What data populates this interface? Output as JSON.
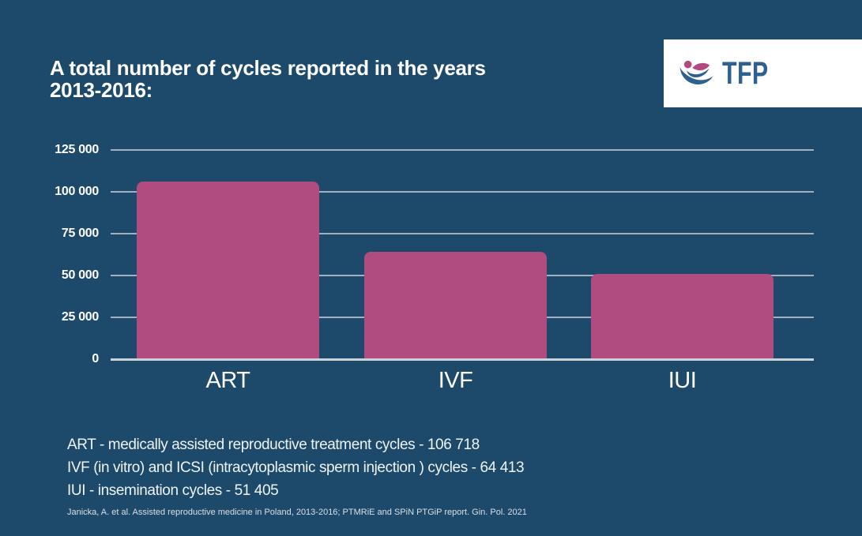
{
  "header": {
    "title_line1": "A total number of cycles reported in the years",
    "title_line2": "2013-2016:"
  },
  "logo": {
    "text": "TFP",
    "icon": "tfp-reclining-person-icon"
  },
  "chart_data": {
    "type": "bar",
    "title": "A total number of cycles reported in the years 2013-2016:",
    "categories": [
      "ART",
      "IVF",
      "IUI"
    ],
    "values": [
      106718,
      64413,
      51405
    ],
    "xlabel": "",
    "ylabel": "",
    "ylim": [
      0,
      125000
    ],
    "yticks": [
      125000,
      100000,
      75000,
      50000,
      25000,
      0
    ],
    "ytick_labels": [
      "125 000",
      "100 000",
      "75 000",
      "50 000",
      "25 000",
      "0"
    ],
    "grid": true,
    "legend_position": "none"
  },
  "legend": {
    "lines": [
      "ART - medically assisted reproductive treatment cycles - 106 718",
      "IVF (in vitro) and ICSI (intracytoplasmic sperm injection ) cycles - 64 413",
      "IUI - insemination cycles - 51 405"
    ]
  },
  "citation": "Janicka, A. et al. Assisted reproductive medicine in Poland, 2013-2016; PTMRiE and SPiN PTGiP report. Gin. Pol. 2021",
  "colors": {
    "background": "#1d4a6b",
    "bar": "#b04c80",
    "gridline": "#b8c4cd",
    "baseline": "#c9d3da",
    "title_text": "#ffffff",
    "logo_blue": "#2d6190",
    "logo_pink": "#b5497f",
    "logo_background": "#ffffff"
  }
}
